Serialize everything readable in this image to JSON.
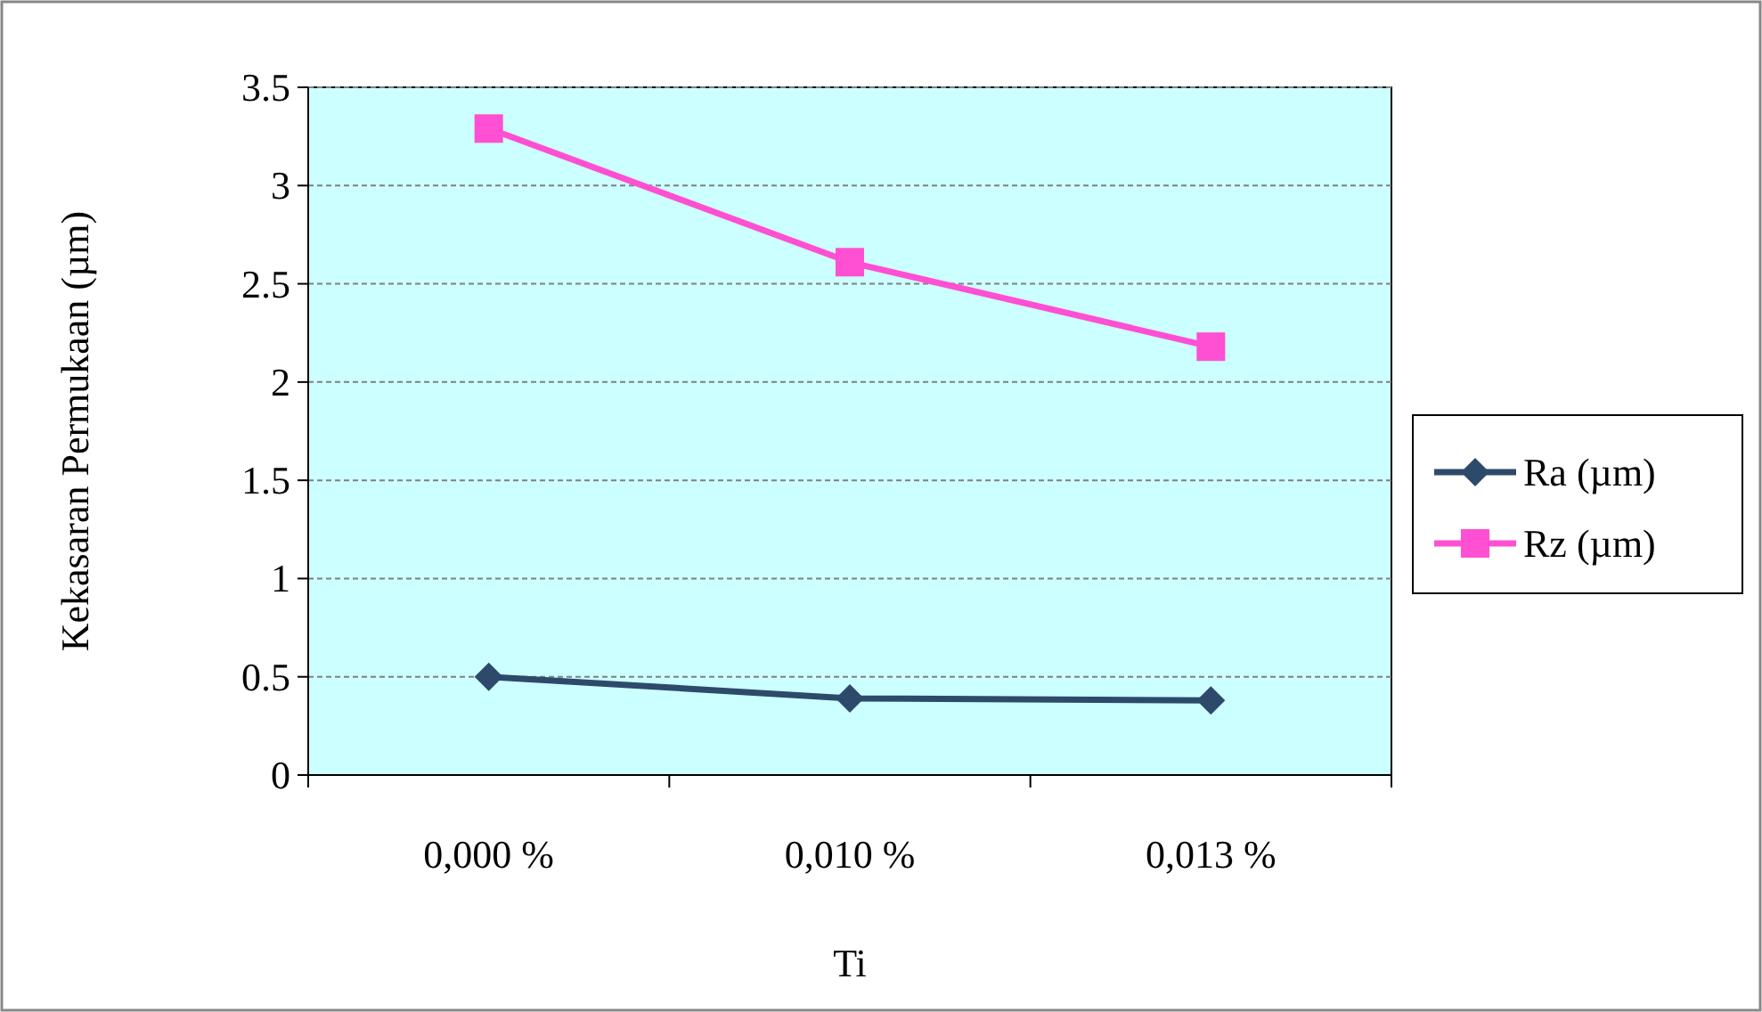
{
  "chart_data": {
    "type": "line",
    "xlabel": "Ti",
    "ylabel": "Kekasaran Permukaan (µm)",
    "categories": [
      "0,000 %",
      "0,010 %",
      "0,013 %"
    ],
    "series": [
      {
        "name": "Ra (µm)",
        "color": "#2e4a6b",
        "marker": "diamond",
        "values": [
          0.5,
          0.39,
          0.38
        ]
      },
      {
        "name": "Rz (µm)",
        "color": "#ff4fd2",
        "marker": "square",
        "values": [
          3.29,
          2.61,
          2.18
        ]
      }
    ],
    "ylim": [
      0,
      3.5
    ],
    "yticks": [
      0,
      0.5,
      1,
      1.5,
      2,
      2.5,
      3,
      3.5
    ],
    "grid": "y",
    "legend": "right"
  }
}
